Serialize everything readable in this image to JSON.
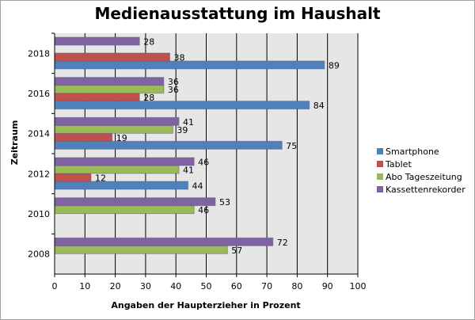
{
  "chart_data": {
    "type": "bar",
    "orientation": "horizontal",
    "title": "Medienausstattung im Haushalt",
    "xlabel": "Angaben der Haupterzieher in Prozent",
    "ylabel": "Zeitraum",
    "xlim": [
      0,
      100
    ],
    "xticks": [
      0,
      10,
      20,
      30,
      40,
      50,
      60,
      70,
      80,
      90,
      100
    ],
    "grid": true,
    "legend_position": "right",
    "categories": [
      "2008",
      "2010",
      "2012",
      "2014",
      "2016",
      "2018"
    ],
    "series": [
      {
        "name": "Smartphone",
        "color": "#4f81bd",
        "values": [
          null,
          null,
          44,
          75,
          84,
          89
        ]
      },
      {
        "name": "Tablet",
        "color": "#c0504d",
        "values": [
          null,
          null,
          12,
          19,
          28,
          38
        ]
      },
      {
        "name": "Abo Tageszeitung",
        "color": "#9bbb59",
        "values": [
          57,
          46,
          41,
          39,
          36,
          null
        ]
      },
      {
        "name": "Kassettenrekorder",
        "color": "#8064a2",
        "values": [
          72,
          53,
          46,
          41,
          36,
          28
        ]
      }
    ],
    "plot_background": "#e6e6e6"
  }
}
